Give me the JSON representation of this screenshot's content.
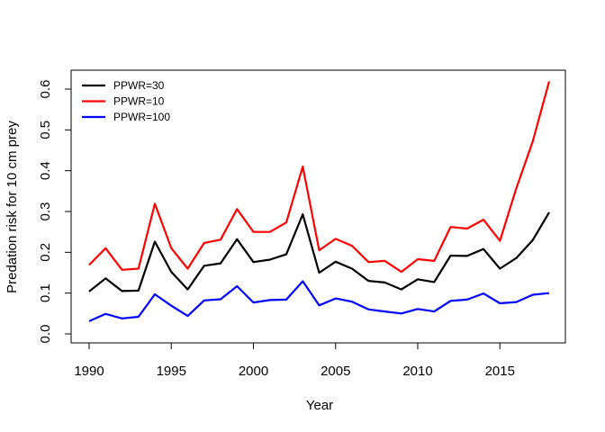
{
  "chart_data": {
    "type": "line",
    "title": "",
    "xlabel": "Year",
    "ylabel": "Predation risk for 10 cm prey",
    "xlim": [
      1990,
      2018
    ],
    "ylim": [
      0,
      0.6
    ],
    "x_ticks": [
      1990,
      1995,
      2000,
      2005,
      2010,
      2015
    ],
    "x_tick_labels": [
      "1990",
      "1995",
      "2000",
      "2005",
      "2010",
      "2015"
    ],
    "y_ticks": [
      0.0,
      0.1,
      0.2,
      0.3,
      0.4,
      0.5,
      0.6
    ],
    "y_tick_labels": [
      "0.0",
      "0.1",
      "0.2",
      "0.3",
      "0.4",
      "0.5",
      "0.6"
    ],
    "grid": false,
    "legend_position": "top-left",
    "x": [
      1990,
      1991,
      1992,
      1993,
      1994,
      1995,
      1996,
      1997,
      1998,
      1999,
      2000,
      2001,
      2002,
      2003,
      2004,
      2005,
      2006,
      2007,
      2008,
      2009,
      2010,
      2011,
      2012,
      2013,
      2014,
      2015,
      2016,
      2017,
      2018
    ],
    "series": [
      {
        "name": "PPWR=30",
        "color": "#000000",
        "values": [
          0.104,
          0.136,
          0.105,
          0.106,
          0.226,
          0.152,
          0.109,
          0.167,
          0.173,
          0.232,
          0.176,
          0.182,
          0.195,
          0.293,
          0.15,
          0.177,
          0.16,
          0.13,
          0.126,
          0.109,
          0.134,
          0.127,
          0.192,
          0.191,
          0.208,
          0.16,
          0.186,
          0.23,
          0.298
        ]
      },
      {
        "name": "PPWR=10",
        "color": "#ff0000",
        "values": [
          0.169,
          0.21,
          0.157,
          0.16,
          0.319,
          0.21,
          0.16,
          0.223,
          0.231,
          0.306,
          0.25,
          0.25,
          0.273,
          0.41,
          0.205,
          0.233,
          0.216,
          0.176,
          0.179,
          0.152,
          0.183,
          0.179,
          0.262,
          0.258,
          0.28,
          0.228,
          0.357,
          0.472,
          0.619
        ]
      },
      {
        "name": "PPWR=100",
        "color": "#0000ff",
        "values": [
          0.031,
          0.049,
          0.038,
          0.042,
          0.097,
          0.069,
          0.044,
          0.082,
          0.085,
          0.117,
          0.077,
          0.083,
          0.084,
          0.129,
          0.07,
          0.087,
          0.079,
          0.06,
          0.055,
          0.05,
          0.061,
          0.055,
          0.081,
          0.084,
          0.099,
          0.075,
          0.078,
          0.096,
          0.1
        ]
      }
    ]
  }
}
